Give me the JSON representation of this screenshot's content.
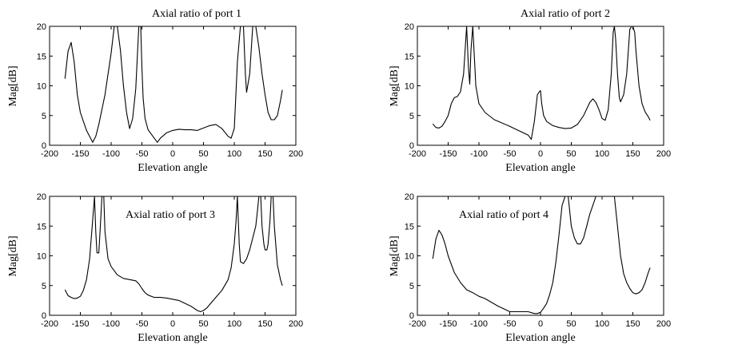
{
  "chart_data": [
    {
      "type": "line",
      "title": "Axial ratio of port 1",
      "xlabel": "Elevation angle",
      "ylabel": "Mag[dB]",
      "xlim": [
        -200,
        200
      ],
      "ylim": [
        0,
        20
      ],
      "xticks": [
        "-200",
        "-150",
        "-100",
        "-50",
        "0",
        "50",
        "100",
        "150",
        "200"
      ],
      "yticks": [
        "0",
        "5",
        "10",
        "15",
        "20"
      ],
      "grid": false,
      "x": [
        -175,
        -170,
        -165,
        -160,
        -155,
        -150,
        -140,
        -130,
        -125,
        -120,
        -110,
        -100,
        -95,
        -90,
        -85,
        -80,
        -75,
        -70,
        -65,
        -60,
        -55,
        -52,
        -50,
        -48,
        -45,
        -40,
        -30,
        -25,
        -20,
        -10,
        0,
        10,
        20,
        30,
        40,
        50,
        60,
        70,
        80,
        90,
        95,
        100,
        102,
        105,
        110,
        115,
        118,
        120,
        125,
        130,
        135,
        140,
        145,
        150,
        155,
        160,
        165,
        170,
        175,
        178
      ],
      "y": [
        11.2,
        15.8,
        17.3,
        14,
        8.5,
        5.5,
        2.5,
        0.5,
        1.5,
        3.5,
        8.5,
        15.5,
        20,
        20,
        16,
        10,
        5.5,
        2.8,
        4.5,
        9.5,
        20,
        20,
        13,
        8,
        4.5,
        2.6,
        1.2,
        0.5,
        1.2,
        2.1,
        2.5,
        2.7,
        2.6,
        2.6,
        2.5,
        2.9,
        3.3,
        3.5,
        2.8,
        1.5,
        1.2,
        2.8,
        7,
        14,
        20,
        20,
        12,
        8.9,
        12,
        20,
        20,
        16.5,
        12,
        8.5,
        5.5,
        4.3,
        4.3,
        5,
        7.5,
        9.3
      ]
    },
    {
      "type": "line",
      "title": "Axial ratio of port 2",
      "xlabel": "Elevation angle",
      "ylabel": "Mag[dB]",
      "xlim": [
        -200,
        200
      ],
      "ylim": [
        0,
        20
      ],
      "xticks": [
        "-200",
        "-150",
        "-100",
        "-50",
        "0",
        "50",
        "100",
        "150",
        "200"
      ],
      "yticks": [
        "0",
        "5",
        "10",
        "15",
        "20"
      ],
      "grid": false,
      "x": [
        -175,
        -170,
        -165,
        -160,
        -155,
        -150,
        -145,
        -140,
        -135,
        -130,
        -125,
        -120,
        -117,
        -115,
        -113,
        -110,
        -107,
        -105,
        -100,
        -90,
        -75,
        -50,
        -30,
        -20,
        -15,
        -10,
        -5,
        -2,
        0,
        2,
        5,
        10,
        20,
        30,
        40,
        50,
        60,
        70,
        80,
        85,
        90,
        95,
        100,
        105,
        110,
        115,
        118,
        120,
        122,
        125,
        128,
        130,
        135,
        140,
        145,
        148,
        150,
        153,
        155,
        160,
        165,
        170,
        175,
        178
      ],
      "y": [
        3.6,
        3,
        2.9,
        3.2,
        4,
        5,
        7,
        8,
        8.2,
        9,
        12,
        20,
        13,
        10.3,
        16,
        20,
        14,
        10,
        7,
        5.5,
        4.3,
        3.2,
        2.2,
        1.7,
        1,
        4,
        8.5,
        9,
        9.2,
        7,
        5,
        4,
        3.3,
        3,
        2.8,
        2.9,
        3.5,
        5,
        7.2,
        7.8,
        7.2,
        6,
        4.5,
        4.2,
        6,
        12,
        19,
        20,
        18,
        12,
        8,
        7.3,
        8.5,
        12,
        19.5,
        20,
        20,
        19,
        16,
        10,
        7,
        5.6,
        4.8,
        4.2
      ]
    },
    {
      "type": "line",
      "title": "Axial ratio of port 3",
      "xlabel": "Elevation angle",
      "ylabel": "Mag[dB]",
      "xlim": [
        -200,
        200
      ],
      "ylim": [
        0,
        20
      ],
      "xticks": [
        "-200",
        "-150",
        "-100",
        "-50",
        "0",
        "50",
        "100",
        "150",
        "200"
      ],
      "yticks": [
        "0",
        "5",
        "10",
        "15",
        "20"
      ],
      "grid": false,
      "x": [
        -175,
        -170,
        -165,
        -160,
        -155,
        -150,
        -145,
        -140,
        -135,
        -130,
        -127,
        -125,
        -123,
        -120,
        -118,
        -115,
        -112,
        -110,
        -105,
        -100,
        -90,
        -80,
        -70,
        -60,
        -55,
        -50,
        -45,
        -40,
        -30,
        -20,
        -10,
        0,
        10,
        20,
        30,
        40,
        45,
        50,
        55,
        60,
        70,
        80,
        90,
        95,
        100,
        103,
        105,
        108,
        110,
        115,
        120,
        125,
        130,
        135,
        138,
        140,
        143,
        145,
        148,
        150,
        153,
        155,
        158,
        160,
        163,
        165,
        170,
        175,
        178
      ],
      "y": [
        4.3,
        3.3,
        3,
        2.8,
        2.9,
        3.2,
        4.2,
        6,
        9.5,
        16,
        20,
        14,
        10.5,
        10.5,
        14,
        20,
        20,
        14,
        9.5,
        8.2,
        6.8,
        6.2,
        6,
        5.8,
        5.3,
        4.5,
        3.8,
        3.4,
        3,
        3,
        2.9,
        2.7,
        2.5,
        2,
        1.5,
        0.8,
        0.6,
        0.8,
        1.2,
        1.8,
        3,
        4.2,
        6,
        8,
        12,
        16,
        20,
        12,
        9,
        8.7,
        9.5,
        11,
        13,
        15,
        18,
        20,
        20,
        15,
        12,
        11,
        11,
        12,
        16,
        20,
        20,
        15,
        8.5,
        6,
        5
      ]
    },
    {
      "type": "line",
      "title": "Axial ratio of port 4",
      "xlabel": "Elevation angle",
      "ylabel": "Mag[dB]",
      "xlim": [
        -200,
        200
      ],
      "ylim": [
        0,
        20
      ],
      "xticks": [
        "-200",
        "-150",
        "-100",
        "-50",
        "0",
        "50",
        "100",
        "150",
        "200"
      ],
      "yticks": [
        "0",
        "5",
        "10",
        "15",
        "20"
      ],
      "grid": false,
      "x": [
        -175,
        -170,
        -165,
        -160,
        -155,
        -150,
        -140,
        -130,
        -120,
        -110,
        -100,
        -90,
        -80,
        -70,
        -60,
        -50,
        -40,
        -30,
        -20,
        -10,
        -5,
        0,
        5,
        10,
        15,
        20,
        25,
        30,
        35,
        40,
        45,
        50,
        55,
        60,
        65,
        70,
        75,
        80,
        85,
        90,
        95,
        100,
        105,
        110,
        115,
        120,
        125,
        130,
        135,
        140,
        145,
        150,
        155,
        160,
        165,
        170,
        175,
        178
      ],
      "y": [
        9.5,
        12.8,
        14.3,
        13.5,
        12,
        10,
        7.2,
        5.5,
        4.3,
        3.8,
        3.2,
        2.8,
        2.2,
        1.6,
        1.1,
        0.6,
        0.6,
        0.6,
        0.6,
        0.3,
        0.3,
        0.5,
        1.2,
        2,
        3.5,
        5.5,
        9,
        13.5,
        18.5,
        20,
        20,
        15,
        13,
        12,
        12,
        13,
        15,
        17,
        18.5,
        20,
        20,
        20,
        20,
        20,
        20,
        20,
        15,
        10,
        7,
        5.5,
        4.5,
        3.8,
        3.6,
        3.8,
        4.3,
        5.5,
        7.2,
        8
      ]
    }
  ]
}
